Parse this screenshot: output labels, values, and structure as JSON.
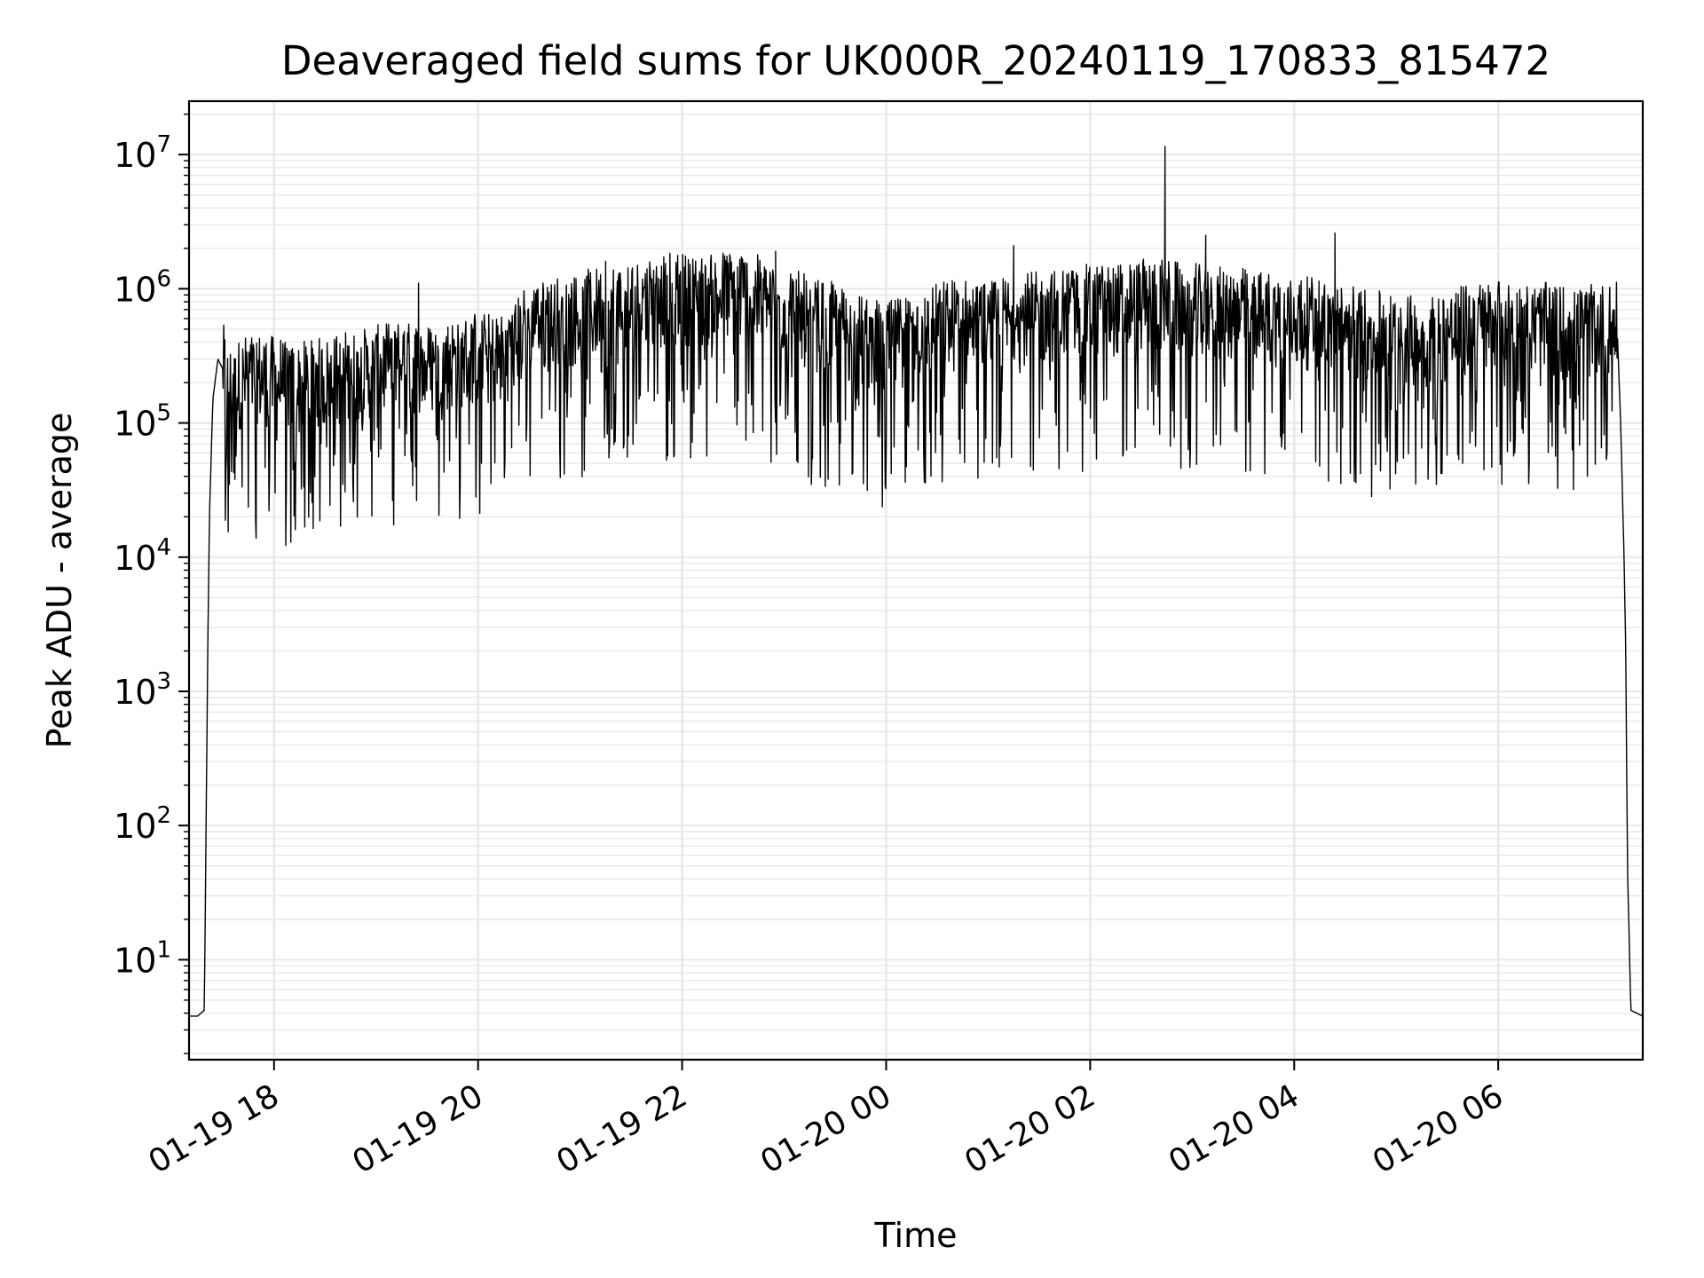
{
  "chart_data": {
    "type": "line",
    "title": "Deaveraged field sums for UK000R_20240119_170833_815472",
    "xlabel": "Time",
    "ylabel": "Peak ADU - average",
    "yscale": "log",
    "xlim": [
      "2024-01-19 17:10",
      "2024-01-20 07:25"
    ],
    "ylim": [
      1.8,
      25000000
    ],
    "grid": true,
    "x_ticks": [
      "2024-01-19 18:00",
      "2024-01-19 20:00",
      "2024-01-19 22:00",
      "2024-01-20 00:00",
      "2024-01-20 02:00",
      "2024-01-20 04:00",
      "2024-01-20 06:00"
    ],
    "x_tick_labels": [
      "01-19 18",
      "01-19 20",
      "01-19 22",
      "01-20 00",
      "01-20 02",
      "01-20 04",
      "01-20 06"
    ],
    "y_ticks": [
      10,
      100,
      1000,
      10000,
      100000,
      1000000,
      10000000
    ],
    "y_tick_base": "10",
    "y_tick_exponents": [
      "1",
      "2",
      "3",
      "4",
      "5",
      "6",
      "7"
    ],
    "series": [
      {
        "color": "#000000",
        "x": [
          "2024-01-19 17:10",
          "2024-01-19 17:15",
          "2024-01-19 17:19",
          "2024-01-19 17:21",
          "2024-01-19 17:22",
          "2024-01-19 17:24",
          "2024-01-19 17:27",
          "2024-01-19 17:30",
          "2024-01-19 17:35",
          "2024-01-19 17:40",
          "2024-01-19 17:50",
          "2024-01-19 18:00",
          "2024-01-19 18:15",
          "2024-01-19 18:30",
          "2024-01-19 18:45",
          "2024-01-19 19:00",
          "2024-01-19 19:15",
          "2024-01-19 19:30",
          "2024-01-19 19:45",
          "2024-01-19 20:00",
          "2024-01-19 20:15",
          "2024-01-19 20:30",
          "2024-01-19 20:45",
          "2024-01-19 21:00",
          "2024-01-19 21:15",
          "2024-01-19 21:30",
          "2024-01-19 21:45",
          "2024-01-19 22:00",
          "2024-01-19 22:15",
          "2024-01-19 22:30",
          "2024-01-19 22:45",
          "2024-01-19 23:00",
          "2024-01-19 23:15",
          "2024-01-19 23:30",
          "2024-01-19 23:45",
          "2024-01-20 00:00",
          "2024-01-20 00:15",
          "2024-01-20 00:30",
          "2024-01-20 00:45",
          "2024-01-20 01:00",
          "2024-01-20 01:15",
          "2024-01-20 01:30",
          "2024-01-20 01:45",
          "2024-01-20 02:00",
          "2024-01-20 02:15",
          "2024-01-20 02:30",
          "2024-01-20 02:45",
          "2024-01-20 03:00",
          "2024-01-20 03:15",
          "2024-01-20 03:30",
          "2024-01-20 03:45",
          "2024-01-20 04:00",
          "2024-01-20 04:15",
          "2024-01-20 04:30",
          "2024-01-20 04:45",
          "2024-01-20 05:00",
          "2024-01-20 05:15",
          "2024-01-20 05:30",
          "2024-01-20 05:45",
          "2024-01-20 06:00",
          "2024-01-20 06:15",
          "2024-01-20 06:30",
          "2024-01-20 06:45",
          "2024-01-20 07:00",
          "2024-01-20 07:10",
          "2024-01-20 07:12",
          "2024-01-20 07:14",
          "2024-01-20 07:15",
          "2024-01-20 07:16",
          "2024-01-20 07:18",
          "2024-01-20 07:25"
        ],
        "y": [
          3.8,
          3.8,
          4.2,
          2000,
          20000,
          150000,
          300000,
          250000,
          150000,
          200000,
          220000,
          200000,
          180000,
          200000,
          220000,
          240000,
          260000,
          250000,
          280000,
          300000,
          300000,
          500000,
          550000,
          600000,
          700000,
          750000,
          800000,
          850000,
          800000,
          900000,
          800000,
          700000,
          550000,
          500000,
          400000,
          350000,
          450000,
          500000,
          550000,
          500000,
          600000,
          600000,
          650000,
          700000,
          700000,
          750000,
          750000,
          700000,
          650000,
          650000,
          600000,
          550000,
          550000,
          500000,
          450000,
          400000,
          400000,
          450000,
          500000,
          550000,
          500000,
          500000,
          450000,
          500000,
          500000,
          100000,
          10000,
          2000,
          50,
          4.2,
          3.8
        ],
        "spikes_max": [
          {
            "x": "2024-01-20 02:44",
            "y": 11500000
          },
          {
            "x": "2024-01-20 03:08",
            "y": 2500000
          },
          {
            "x": "2024-01-20 04:24",
            "y": 2600000
          },
          {
            "x": "2024-01-20 01:15",
            "y": 2100000
          },
          {
            "x": "2024-01-19 22:55",
            "y": 1900000
          },
          {
            "x": "2024-01-19 21:15",
            "y": 1600000
          },
          {
            "x": "2024-01-19 19:25",
            "y": 1100000
          }
        ],
        "spikes_min": [
          {
            "x": "2024-01-20 00:03",
            "y": 42000
          },
          {
            "x": "2024-01-19 18:35",
            "y": 48000
          },
          {
            "x": "2024-01-19 20:02",
            "y": 50000
          },
          {
            "x": "2024-01-20 01:05",
            "y": 55000
          },
          {
            "x": "2024-01-19 22:05",
            "y": 55000
          },
          {
            "x": "2024-01-20 05:15",
            "y": 65000
          }
        ]
      }
    ]
  }
}
